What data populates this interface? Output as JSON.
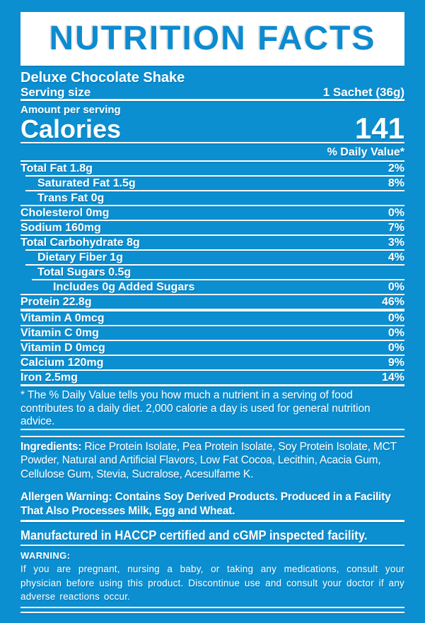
{
  "colors": {
    "background": "#0C8FD1",
    "panel": "#FFFFFF",
    "title_text": "#0C8BD0",
    "text": "#FFFFFF"
  },
  "title": "NUTRITION FACTS",
  "product": "Deluxe Chocolate Shake",
  "serving": {
    "label": "Serving size",
    "value": "1 Sachet (36g)"
  },
  "amount_per_serving": "Amount per serving",
  "calories": {
    "label": "Calories",
    "value": "141"
  },
  "daily_value_header": "% Daily Value*",
  "rows": [
    {
      "name": "Total Fat 1.8g",
      "dv": "2%",
      "indent": 0,
      "sep_indent": 0,
      "sep_thick": false
    },
    {
      "name": "Saturated Fat 1.5g",
      "dv": "8%",
      "indent": 1,
      "sep_indent": 7,
      "sep_thick": false
    },
    {
      "name": "Trans Fat 0g",
      "dv": "",
      "indent": 1,
      "sep_indent": 7,
      "sep_thick": false
    },
    {
      "name": "Cholesterol 0mg",
      "dv": "0%",
      "indent": 0,
      "sep_indent": 0,
      "sep_thick": false
    },
    {
      "name": "Sodium 160mg",
      "dv": "7%",
      "indent": 0,
      "sep_indent": 0,
      "sep_thick": false
    },
    {
      "name": "Total Carbohydrate 8g",
      "dv": "3%",
      "indent": 0,
      "sep_indent": 0,
      "sep_thick": false
    },
    {
      "name": "Dietary Fiber 1g",
      "dv": "4%",
      "indent": 1,
      "sep_indent": 7,
      "sep_thick": false
    },
    {
      "name": "Total Sugars 0.5g",
      "dv": "",
      "indent": 1,
      "sep_indent": 7,
      "sep_thick": false
    },
    {
      "name": "Includes 0g Added Sugars",
      "dv": "0%",
      "indent": 2,
      "sep_indent": 16,
      "sep_thick": false
    },
    {
      "name": "Protein 22.8g",
      "dv": "46%",
      "indent": 0,
      "sep_indent": 0,
      "sep_thick": false
    },
    {
      "name": "Vitamin A 0mcg",
      "dv": "0%",
      "indent": 0,
      "sep_indent": 0,
      "sep_thick": true
    },
    {
      "name": "Vitamin C 0mg",
      "dv": "0%",
      "indent": 0,
      "sep_indent": 0,
      "sep_thick": false
    },
    {
      "name": "Vitamin D 0mcg",
      "dv": "0%",
      "indent": 0,
      "sep_indent": 0,
      "sep_thick": false
    },
    {
      "name": "Calcium 120mg",
      "dv": "9%",
      "indent": 0,
      "sep_indent": 0,
      "sep_thick": false
    },
    {
      "name": "Iron 2.5mg",
      "dv": "14%",
      "indent": 0,
      "sep_indent": 0,
      "sep_thick": false
    }
  ],
  "footnote": "* The % Daily Value tells you how much a nutrient in a serving of food contributes to a daily diet. 2,000 calorie a day is used for general nutrition advice.",
  "ingredients": {
    "label": "Ingredients:",
    "text": "Rice Protein Isolate, Pea Protein Isolate, Soy Protein Isolate, MCT Powder, Natural and Artificial Flavors, Low Fat Cocoa, Lecithin, Acacia Gum, Cellulose Gum, Stevia, Sucralose, Acesulfame K."
  },
  "allergen": {
    "label": "Allergen Warning:",
    "text": "Contains Soy Derived Products. Produced in a Facility That Also Processes Milk, Egg and Wheat."
  },
  "manufactured": "Manufactured in HACCP certified and cGMP inspected facility.",
  "warning": {
    "label": "WARNING:",
    "text": "If you are pregnant, nursing a baby, or taking any medications, consult your physician before using this product. Discontinue use and consult your doctor if any adverse reactions occur."
  }
}
